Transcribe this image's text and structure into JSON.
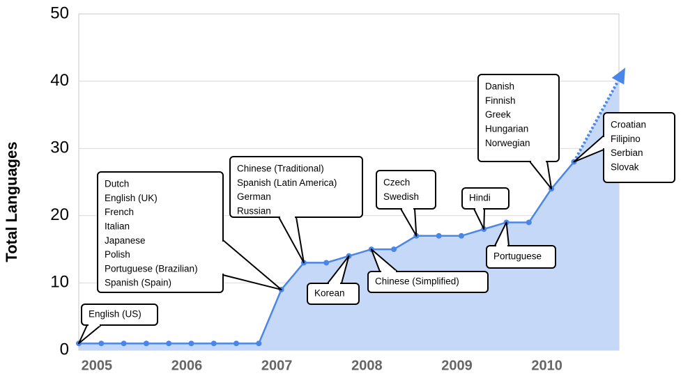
{
  "chart_data": {
    "type": "area",
    "y_label": "Total Languages",
    "x": [
      2004.8,
      2005.05,
      2005.3,
      2005.55,
      2005.8,
      2006.05,
      2006.3,
      2006.55,
      2006.8,
      2007.05,
      2007.3,
      2007.55,
      2007.8,
      2008.05,
      2008.3,
      2008.55,
      2008.8,
      2009.05,
      2009.3,
      2009.55,
      2009.8,
      2010.05,
      2010.3
    ],
    "values": [
      1,
      1,
      1,
      1,
      1,
      1,
      1,
      1,
      1,
      9,
      13,
      13,
      14,
      15,
      15,
      17,
      17,
      17,
      18,
      19,
      19,
      24,
      28
    ],
    "color": "#4a86e8",
    "fill": "#c6d8f7",
    "xlim": [
      2004.8,
      2010.8
    ],
    "xticks": [
      2005,
      2006,
      2007,
      2008,
      2009,
      2010
    ],
    "ylim": [
      0,
      50
    ],
    "yticks": [
      0,
      10,
      20,
      30,
      40,
      50
    ],
    "grid": true,
    "projection": {
      "x": [
        2010.3,
        2010.87
      ],
      "values": [
        28,
        42
      ]
    },
    "annotations": [
      [
        "English (US)"
      ],
      [
        "Dutch",
        "English (UK)",
        "French",
        "Italian",
        "Japanese",
        "Polish",
        "Portuguese (Brazilian)",
        "Spanish (Spain)"
      ],
      [
        "Chinese (Traditional)",
        "Spanish (Latin America)",
        "German",
        "Russian"
      ],
      [
        "Korean"
      ],
      [
        "Chinese (Simplified)"
      ],
      [
        "Czech",
        "Swedish"
      ],
      [
        "Hindi"
      ],
      [
        "Portuguese"
      ],
      [
        "Danish",
        "Finnish",
        "Greek",
        "Hungarian",
        "Norwegian"
      ],
      [
        "Croatian",
        "Filipino",
        "Serbian",
        "Slovak"
      ]
    ]
  }
}
